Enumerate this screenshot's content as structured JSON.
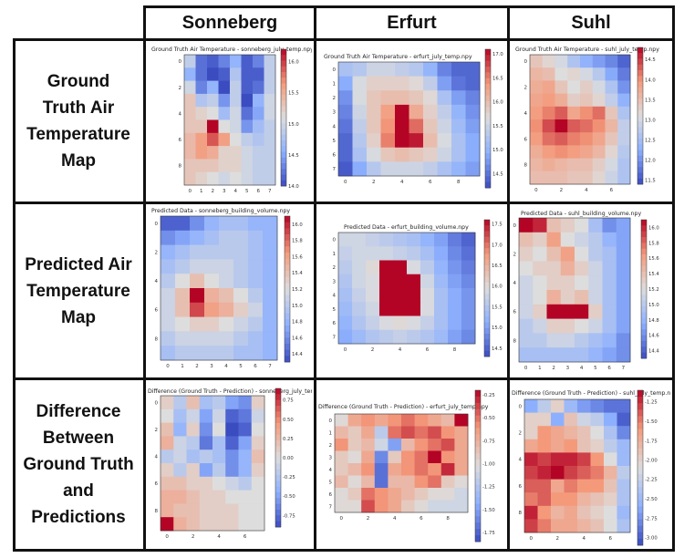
{
  "column_headers": [
    "Sonneberg",
    "Erfurt",
    "Suhl"
  ],
  "row_headers": [
    "Ground\nTruth Air\nTemperature\nMap",
    "Predicted Air\nTemperature\nMap",
    "Difference\nBetween\nGround Truth\nand\nPredictions"
  ],
  "colors": {
    "cold": "#3b4cc0",
    "neutral": "#dddddd",
    "hot": "#b40426",
    "grid_line": "#111111"
  },
  "chart_data": [
    {
      "type": "heatmap",
      "city": "Sonneberg",
      "title": "Ground Truth Air Temperature - sonneberg_july_temp.npy",
      "xticks": [
        "0",
        "1",
        "2",
        "3",
        "4",
        "5",
        "6",
        "7"
      ],
      "yticks": [
        "0",
        "2",
        "4",
        "6",
        "8"
      ],
      "colorbar_ticks": [
        "16.0",
        "15.5",
        "15.0",
        "14.5",
        "14.0"
      ],
      "vmin": 14.0,
      "vmax": 16.2,
      "values": [
        [
          14.9,
          14.2,
          14.1,
          14.3,
          14.6,
          14.1,
          14.3,
          14.9
        ],
        [
          14.6,
          14.2,
          14.0,
          14.1,
          14.8,
          14.1,
          14.1,
          14.9
        ],
        [
          15.0,
          14.3,
          14.6,
          14.0,
          14.9,
          14.1,
          14.2,
          14.9
        ],
        [
          15.3,
          14.8,
          14.9,
          14.4,
          14.9,
          14.0,
          14.6,
          15.0
        ],
        [
          15.3,
          15.2,
          15.1,
          14.7,
          15.0,
          14.2,
          14.5,
          15.0
        ],
        [
          15.3,
          15.3,
          16.2,
          15.1,
          15.0,
          14.4,
          14.7,
          14.9
        ],
        [
          15.4,
          15.6,
          15.9,
          15.6,
          15.1,
          14.9,
          14.8,
          14.9
        ],
        [
          15.4,
          15.6,
          15.5,
          15.2,
          15.2,
          15.0,
          14.9,
          14.9
        ],
        [
          15.3,
          15.3,
          15.3,
          15.2,
          15.2,
          15.0,
          14.9,
          14.9
        ],
        [
          15.3,
          15.2,
          15.1,
          15.0,
          15.1,
          15.0,
          14.9,
          14.9
        ]
      ]
    },
    {
      "type": "heatmap",
      "city": "Erfurt",
      "title": "Ground Truth Air Temperature - erfurt_july_temp.npy",
      "xticks": [
        "0",
        "2",
        "4",
        "6",
        "8"
      ],
      "yticks": [
        "0",
        "1",
        "2",
        "3",
        "4",
        "5",
        "6",
        "7"
      ],
      "colorbar_ticks": [
        "17.0",
        "16.5",
        "16.0",
        "15.5",
        "15.0",
        "14.5"
      ],
      "vmin": 14.2,
      "vmax": 17.1,
      "values": [
        [
          15.2,
          15.3,
          15.5,
          15.5,
          15.4,
          15.3,
          15.0,
          14.6,
          14.4,
          14.4
        ],
        [
          14.9,
          15.6,
          15.8,
          15.8,
          15.8,
          15.7,
          15.4,
          14.8,
          14.5,
          14.4
        ],
        [
          14.7,
          15.6,
          15.9,
          16.0,
          16.0,
          15.9,
          15.7,
          15.2,
          14.8,
          14.6
        ],
        [
          14.6,
          15.5,
          15.9,
          16.3,
          17.1,
          16.2,
          15.8,
          15.4,
          15.0,
          14.7
        ],
        [
          14.5,
          15.4,
          15.9,
          16.4,
          17.1,
          16.6,
          15.9,
          15.5,
          15.1,
          14.8
        ],
        [
          14.4,
          15.3,
          15.8,
          16.5,
          17.1,
          17.0,
          16.0,
          15.6,
          15.2,
          14.9
        ],
        [
          14.4,
          15.2,
          15.6,
          15.9,
          16.0,
          15.9,
          15.8,
          15.5,
          15.2,
          14.9
        ],
        [
          14.3,
          14.9,
          15.3,
          15.5,
          15.5,
          15.5,
          15.4,
          15.2,
          15.0,
          14.8
        ]
      ]
    },
    {
      "type": "heatmap",
      "city": "Suhl",
      "title": "Ground Truth Air Temperature - suhl_july_temp.npy",
      "xticks": [
        "0",
        "2",
        "4",
        "6"
      ],
      "yticks": [
        "0",
        "2",
        "4",
        "6",
        "8"
      ],
      "colorbar_ticks": [
        "14.5",
        "14.0",
        "13.5",
        "13.0",
        "12.5",
        "12.0",
        "11.5"
      ],
      "vmin": 11.4,
      "vmax": 14.8,
      "values": [
        [
          13.4,
          13.2,
          13.0,
          12.6,
          12.3,
          12.1,
          11.9,
          11.6
        ],
        [
          13.6,
          13.5,
          13.1,
          13.2,
          13.0,
          12.7,
          12.2,
          11.8
        ],
        [
          13.7,
          13.8,
          13.4,
          13.1,
          13.3,
          13.0,
          12.6,
          12.0
        ],
        [
          13.8,
          13.9,
          13.7,
          13.3,
          13.4,
          13.2,
          12.8,
          12.3
        ],
        [
          13.9,
          14.1,
          14.3,
          13.8,
          14.0,
          14.2,
          13.4,
          12.6
        ],
        [
          14.0,
          14.4,
          14.8,
          14.3,
          14.2,
          14.0,
          13.6,
          12.8
        ],
        [
          13.9,
          14.2,
          14.3,
          14.1,
          14.0,
          13.8,
          13.4,
          12.8
        ],
        [
          13.7,
          13.9,
          14.0,
          13.9,
          13.8,
          13.6,
          13.2,
          12.7
        ],
        [
          13.6,
          13.7,
          13.6,
          13.5,
          13.5,
          13.3,
          13.0,
          12.6
        ],
        [
          13.5,
          13.5,
          13.5,
          13.4,
          13.4,
          13.2,
          12.9,
          12.6
        ]
      ]
    },
    {
      "type": "heatmap",
      "city": "Sonneberg",
      "title": "Predicted Data - sonneberg_building_volume.npy",
      "xticks": [
        "0",
        "1",
        "2",
        "3",
        "4",
        "5",
        "6",
        "7"
      ],
      "yticks": [
        "0",
        "2",
        "4",
        "6",
        "8"
      ],
      "colorbar_ticks": [
        "16.0",
        "15.8",
        "15.6",
        "15.4",
        "15.2",
        "15.0",
        "14.8",
        "14.6",
        "14.4"
      ],
      "vmin": 14.3,
      "vmax": 16.1,
      "values": [
        [
          14.4,
          14.4,
          14.6,
          14.8,
          14.9,
          14.9,
          14.8,
          14.8
        ],
        [
          14.6,
          14.7,
          14.8,
          14.9,
          15.0,
          15.0,
          14.9,
          14.8
        ],
        [
          14.8,
          14.9,
          15.0,
          15.0,
          15.0,
          15.0,
          14.9,
          14.8
        ],
        [
          14.9,
          15.0,
          15.1,
          15.1,
          15.1,
          15.0,
          14.9,
          14.8
        ],
        [
          15.0,
          15.2,
          15.4,
          15.2,
          15.1,
          15.0,
          14.9,
          14.8
        ],
        [
          15.1,
          15.4,
          16.1,
          15.5,
          15.4,
          15.2,
          15.0,
          14.8
        ],
        [
          15.1,
          15.4,
          15.9,
          15.6,
          15.5,
          15.3,
          15.1,
          14.8
        ],
        [
          15.1,
          15.2,
          15.3,
          15.3,
          15.2,
          15.1,
          15.0,
          14.8
        ],
        [
          15.0,
          15.1,
          15.1,
          15.1,
          15.1,
          15.0,
          14.9,
          14.8
        ],
        [
          14.9,
          15.0,
          15.0,
          15.0,
          15.0,
          14.9,
          14.9,
          14.8
        ]
      ]
    },
    {
      "type": "heatmap",
      "city": "Erfurt",
      "title": "Predicted Data - erfurt_building_volume.npy",
      "xticks": [
        "0",
        "2",
        "4",
        "6",
        "8"
      ],
      "yticks": [
        "0",
        "1",
        "2",
        "3",
        "4",
        "5",
        "6",
        "7"
      ],
      "colorbar_ticks": [
        "17.5",
        "17.0",
        "16.5",
        "16.0",
        "15.5",
        "15.0",
        "14.5"
      ],
      "vmin": 14.3,
      "vmax": 17.6,
      "values": [
        [
          15.8,
          15.8,
          15.7,
          15.6,
          15.5,
          15.4,
          15.2,
          15.0,
          14.7,
          14.5
        ],
        [
          15.7,
          15.8,
          15.8,
          15.8,
          15.7,
          15.6,
          15.4,
          15.1,
          14.8,
          14.6
        ],
        [
          15.6,
          15.8,
          16.0,
          17.6,
          17.6,
          15.9,
          15.6,
          15.2,
          14.9,
          14.7
        ],
        [
          15.5,
          15.8,
          15.9,
          17.6,
          17.6,
          17.6,
          15.8,
          15.3,
          15.0,
          14.8
        ],
        [
          15.4,
          15.7,
          15.9,
          17.6,
          17.6,
          17.6,
          15.9,
          15.4,
          15.1,
          14.9
        ],
        [
          15.3,
          15.6,
          15.8,
          17.6,
          17.6,
          17.6,
          15.9,
          15.4,
          15.1,
          14.9
        ],
        [
          15.2,
          15.5,
          15.7,
          15.9,
          16.0,
          15.9,
          15.7,
          15.4,
          15.1,
          14.9
        ],
        [
          15.1,
          15.3,
          15.5,
          15.6,
          15.7,
          15.6,
          15.5,
          15.3,
          15.0,
          14.8
        ]
      ]
    },
    {
      "type": "heatmap",
      "city": "Suhl",
      "title": "Predicted Data - suhl_building_volume.npy",
      "xticks": [
        "0",
        "1",
        "2",
        "3",
        "4",
        "5",
        "6",
        "7"
      ],
      "yticks": [
        "0",
        "2",
        "4",
        "6",
        "8"
      ],
      "colorbar_ticks": [
        "16.0",
        "15.8",
        "15.6",
        "15.4",
        "15.2",
        "15.0",
        "14.8",
        "14.6",
        "14.4"
      ],
      "vmin": 14.3,
      "vmax": 16.1,
      "values": [
        [
          16.1,
          16.0,
          15.4,
          15.3,
          15.2,
          14.9,
          14.6,
          14.7
        ],
        [
          15.4,
          15.3,
          15.6,
          15.2,
          15.1,
          15.0,
          14.8,
          14.7
        ],
        [
          15.3,
          15.2,
          15.4,
          15.6,
          15.2,
          15.0,
          14.9,
          14.7
        ],
        [
          15.2,
          15.3,
          15.3,
          15.5,
          15.3,
          15.1,
          14.9,
          14.7
        ],
        [
          15.1,
          15.2,
          15.3,
          15.3,
          15.2,
          15.1,
          14.9,
          14.7
        ],
        [
          15.1,
          15.2,
          15.5,
          15.3,
          15.4,
          15.1,
          14.9,
          14.7
        ],
        [
          15.1,
          15.3,
          16.1,
          16.1,
          16.1,
          15.3,
          14.9,
          14.7
        ],
        [
          15.0,
          15.1,
          15.3,
          15.3,
          15.2,
          15.1,
          14.9,
          14.7
        ],
        [
          15.0,
          15.0,
          15.1,
          15.1,
          15.0,
          14.9,
          14.8,
          14.6
        ],
        [
          14.9,
          14.9,
          14.9,
          14.9,
          14.9,
          14.8,
          14.7,
          14.6
        ]
      ]
    },
    {
      "type": "heatmap",
      "city": "Sonneberg",
      "title": "Difference (Ground Truth - Prediction) - sonneberg_july_temp.npy",
      "xticks": [
        "0",
        "2",
        "4",
        "6"
      ],
      "yticks": [
        "0",
        "2",
        "4",
        "6",
        "8"
      ],
      "colorbar_ticks": [
        "0.75",
        "0.50",
        "0.25",
        "0.00",
        "-0.25",
        "-0.50",
        "-0.75"
      ],
      "vmin": -0.9,
      "vmax": 0.9,
      "values": [
        [
          0.1,
          -0.2,
          0.2,
          -0.3,
          -0.2,
          -0.5,
          -0.6,
          0.1
        ],
        [
          0.0,
          -0.3,
          -0.1,
          -0.5,
          -0.1,
          -0.8,
          -0.7,
          -0.1
        ],
        [
          0.2,
          -0.4,
          0.1,
          -0.6,
          0.0,
          -0.9,
          -0.8,
          0.0
        ],
        [
          0.3,
          -0.1,
          -0.2,
          -0.7,
          -0.3,
          -0.8,
          -0.5,
          0.1
        ],
        [
          -0.2,
          -0.1,
          -0.3,
          -0.2,
          -0.3,
          -0.6,
          -0.4,
          0.2
        ],
        [
          0.1,
          -0.2,
          0.1,
          -0.5,
          -0.2,
          -0.6,
          -0.4,
          0.1
        ],
        [
          0.2,
          0.2,
          0.1,
          0.1,
          0.0,
          -0.1,
          -0.2,
          0.0
        ],
        [
          0.3,
          0.3,
          0.2,
          0.1,
          0.1,
          0.0,
          0.0,
          0.0
        ],
        [
          0.3,
          0.2,
          0.2,
          0.1,
          0.1,
          0.1,
          0.0,
          0.0
        ],
        [
          0.9,
          0.3,
          0.2,
          0.1,
          0.1,
          0.1,
          0.0,
          0.0
        ]
      ]
    },
    {
      "type": "heatmap",
      "city": "Erfurt",
      "title": "Difference (Ground Truth - Prediction) - erfurt_july_temp.npy",
      "xticks": [
        "0",
        "2",
        "4",
        "6",
        "8"
      ],
      "yticks": [
        "0",
        "1",
        "2",
        "3",
        "4",
        "5",
        "6",
        "7"
      ],
      "colorbar_ticks": [
        "-0.25",
        "-0.50",
        "-0.75",
        "-1.00",
        "-1.25",
        "-1.50",
        "-1.75"
      ],
      "vmin": -1.85,
      "vmax": -0.2,
      "values": [
        [
          -1.0,
          -0.7,
          -0.6,
          -0.7,
          -0.6,
          -0.5,
          -0.6,
          -0.7,
          -0.8,
          -0.2
        ],
        [
          -0.8,
          -0.9,
          -0.7,
          -1.2,
          -0.5,
          -0.4,
          -0.5,
          -0.4,
          -0.6,
          -0.7
        ],
        [
          -0.6,
          -0.9,
          -0.8,
          -1.1,
          -1.5,
          -0.8,
          -0.6,
          -0.5,
          -0.4,
          -0.7
        ],
        [
          -0.9,
          -1.0,
          -0.7,
          -1.6,
          -0.9,
          -0.6,
          -0.5,
          -0.2,
          -0.6,
          -0.7
        ],
        [
          -0.9,
          -0.8,
          -0.6,
          -1.7,
          -0.7,
          -0.6,
          -0.5,
          -0.6,
          -0.3,
          -0.7
        ],
        [
          -0.8,
          -1.0,
          -0.8,
          -1.7,
          -0.8,
          -0.8,
          -0.6,
          -0.5,
          -0.9,
          -1.0
        ],
        [
          -1.0,
          -0.9,
          -0.5,
          -0.6,
          -0.7,
          -0.8,
          -0.9,
          -1.0,
          -1.0,
          -1.1
        ],
        [
          -1.0,
          -1.0,
          -0.4,
          -0.6,
          -0.7,
          -0.9,
          -1.0,
          -1.1,
          -1.1,
          -1.1
        ]
      ]
    },
    {
      "type": "heatmap",
      "city": "Suhl",
      "title": "Difference (Ground Truth - Prediction) - suhl_july_temp.npy",
      "xticks": [
        "0",
        "2",
        "4",
        "6"
      ],
      "yticks": [
        "0",
        "2",
        "4",
        "6",
        "8"
      ],
      "colorbar_ticks": [
        "-1.25",
        "-1.50",
        "-1.75",
        "-2.00",
        "-2.25",
        "-2.50",
        "-2.75",
        "-3.00"
      ],
      "vmin": -3.1,
      "vmax": -1.1,
      "values": [
        [
          -2.6,
          -2.3,
          -2.0,
          -2.5,
          -2.7,
          -2.8,
          -2.9,
          -2.9
        ],
        [
          -2.0,
          -2.0,
          -2.6,
          -1.9,
          -2.2,
          -2.3,
          -2.6,
          -3.0
        ],
        [
          -2.0,
          -1.6,
          -1.7,
          -1.8,
          -1.9,
          -2.1,
          -2.4,
          -2.8
        ],
        [
          -1.7,
          -1.6,
          -1.7,
          -1.6,
          -1.9,
          -2.0,
          -2.3,
          -2.5
        ],
        [
          -1.2,
          -1.3,
          -1.2,
          -1.2,
          -1.3,
          -1.6,
          -2.1,
          -2.5
        ],
        [
          -1.3,
          -1.2,
          -1.1,
          -1.3,
          -1.4,
          -1.5,
          -1.8,
          -2.3
        ],
        [
          -1.4,
          -1.4,
          -1.7,
          -1.5,
          -1.6,
          -1.6,
          -1.9,
          -2.4
        ],
        [
          -1.5,
          -1.4,
          -1.6,
          -1.6,
          -1.8,
          -1.9,
          -2.0,
          -2.4
        ],
        [
          -1.2,
          -1.6,
          -1.8,
          -1.7,
          -1.9,
          -2.0,
          -2.1,
          -2.5
        ],
        [
          -1.3,
          -1.5,
          -1.7,
          -1.7,
          -1.8,
          -1.9,
          -2.1,
          -2.4
        ]
      ]
    }
  ]
}
